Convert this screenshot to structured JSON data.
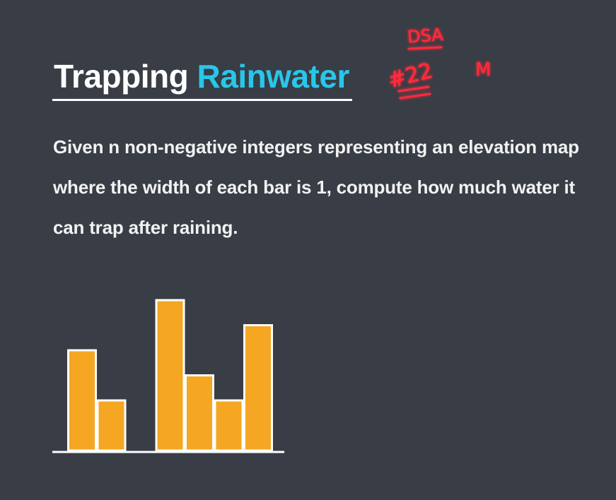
{
  "title": {
    "word1": "Trapping",
    "word2": "Rainwater"
  },
  "description": "Given n non-negative integers representing an elevation map where the width of each bar is 1, compute how much water it can trap after raining.",
  "annotation": {
    "series": "DSA",
    "number": "#22",
    "difficulty": "M",
    "color": "#ff2a3a"
  },
  "chart_data": {
    "type": "bar",
    "values": [
      4,
      2,
      0,
      6,
      3,
      2,
      5
    ],
    "bar_color": "#f5a623",
    "ylim": [
      0,
      6
    ]
  },
  "colors": {
    "background": "#383d46",
    "accent": "#29c6ea",
    "bar": "#f5a623"
  }
}
